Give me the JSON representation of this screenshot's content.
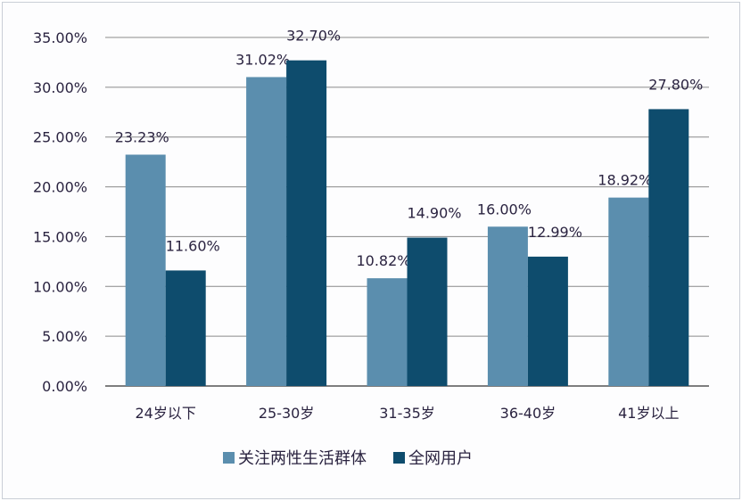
{
  "chart_data": {
    "type": "bar",
    "categories": [
      "24岁以下",
      "25-30岁",
      "31-35岁",
      "36-40岁",
      "41岁以上"
    ],
    "series": [
      {
        "name": "关注两性生活群体",
        "values": [
          23.23,
          31.02,
          10.82,
          16.0,
          18.92
        ],
        "labels": [
          "23.23%",
          "31.02%",
          "10.82%",
          "16.00%",
          "18.92%"
        ],
        "color": "#5b8eae"
      },
      {
        "name": "全网用户",
        "values": [
          11.6,
          32.7,
          14.9,
          12.99,
          27.8
        ],
        "labels": [
          "11.60%",
          "32.70%",
          "14.90%",
          "12.99%",
          "27.80%"
        ],
        "color": "#0e4c6d"
      }
    ],
    "ylim": [
      0,
      35
    ],
    "yticks": [
      "0.00%",
      "5.00%",
      "10.00%",
      "15.00%",
      "20.00%",
      "25.00%",
      "30.00%",
      "35.00%"
    ],
    "grid": true,
    "legend": "bottom"
  }
}
